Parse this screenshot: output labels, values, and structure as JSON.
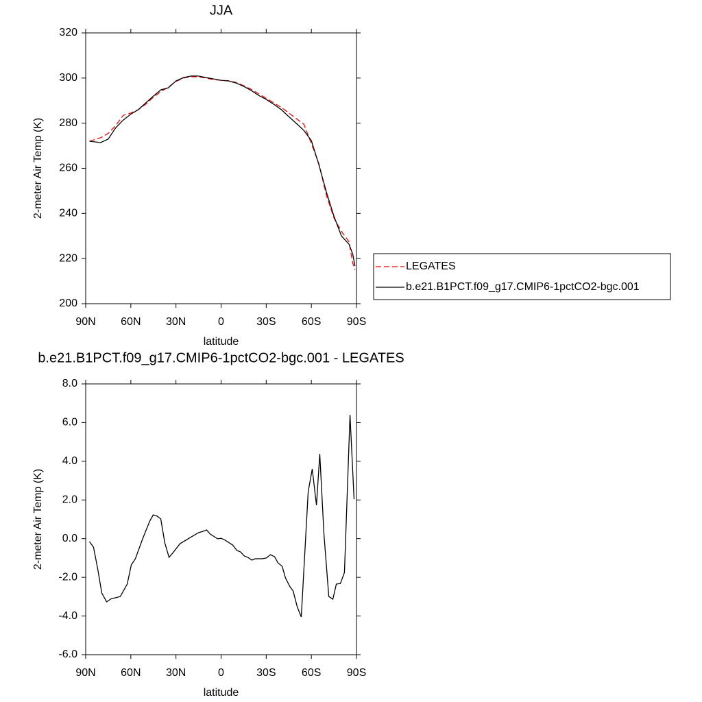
{
  "chart_data": [
    {
      "type": "line",
      "title": "JJA",
      "xlabel": "latitude",
      "ylabel": "2-meter Air Temp (K)",
      "x": [
        87.5,
        80,
        75,
        70,
        65,
        60,
        55,
        50,
        45,
        40,
        35,
        30,
        25,
        20,
        15,
        10,
        5,
        0,
        -5,
        -10,
        -15,
        -20,
        -25,
        -30,
        -35,
        -40,
        -45,
        -50,
        -55,
        -60,
        -65,
        -70,
        -75,
        -80,
        -85,
        -87.5,
        -89
      ],
      "series": [
        {
          "name": "LEGATES",
          "color": "#ff0000",
          "linestyle": "dashed",
          "values": [
            272,
            273.6,
            275.5,
            279,
            283.5,
            284.5,
            286,
            288.5,
            291.5,
            294,
            296,
            298.5,
            300,
            300.6,
            300.5,
            300,
            299.3,
            299,
            298.8,
            298,
            296.6,
            295,
            293,
            291,
            289,
            287,
            284.5,
            282,
            279.5,
            271,
            262,
            248,
            238,
            232,
            227.5,
            218,
            215
          ]
        },
        {
          "name": "b.e21.B1PCT.f09_g17.CMIP6-1pctCO2-bgc.001",
          "color": "#000000",
          "linestyle": "solid",
          "values": [
            272,
            271.4,
            273,
            278,
            281.4,
            284,
            286,
            289,
            292,
            294.8,
            295.7,
            298.7,
            300.2,
            300.9,
            300.9,
            300.2,
            299.6,
            299,
            298.7,
            297.8,
            296.3,
            294.5,
            292.3,
            290.5,
            288.4,
            286,
            282.9,
            279.9,
            276.8,
            272.3,
            261.6,
            249.5,
            238.8,
            230,
            226.4,
            222,
            216.7
          ]
        }
      ],
      "xlim": [
        90,
        -90
      ],
      "xticks": [
        {
          "value": 90,
          "label": "90N"
        },
        {
          "value": 60,
          "label": "60N"
        },
        {
          "value": 30,
          "label": "30N"
        },
        0,
        {
          "value": -30,
          "label": "30S"
        },
        {
          "value": -60,
          "label": "60S"
        },
        {
          "value": -90,
          "label": "90S"
        }
      ],
      "ylim": [
        200,
        320
      ],
      "yticks": [
        200,
        220,
        240,
        260,
        280,
        300,
        320
      ]
    },
    {
      "type": "line",
      "title": "b.e21.B1PCT.f09_g17.CMIP6-1pctCO2-bgc.001 - LEGATES",
      "xlabel": "latitude",
      "ylabel": "2-meter Air Temp (K)",
      "x": [
        87.5,
        84.8,
        82,
        79.3,
        76.1,
        73,
        70.2,
        67,
        62.4,
        59.7,
        57,
        52,
        47.4,
        45.1,
        42.4,
        40.1,
        37.4,
        34.6,
        31.9,
        27.3,
        19.6,
        15,
        11.9,
        9.6,
        7.3,
        2.3,
        0,
        -2.7,
        -7.7,
        -10.5,
        -12.8,
        -15.5,
        -17.8,
        -20.5,
        -22.8,
        -27.3,
        -30.1,
        -32.8,
        -35.5,
        -37.8,
        -40.6,
        -42.8,
        -45.6,
        -47.9,
        -50.6,
        -53.3,
        -57.9,
        -60.6,
        -63.4,
        -65.6,
        -68.4,
        -71.6,
        -74.3,
        -76.6,
        -79.3,
        -82,
        -85.7,
        -88.4
      ],
      "color": "#000000",
      "values": [
        -0.15,
        -0.44,
        -1.57,
        -2.81,
        -3.27,
        -3.1,
        -3.06,
        -2.99,
        -2.35,
        -1.36,
        -1.04,
        0.02,
        0.91,
        1.23,
        1.16,
        1.02,
        -0.22,
        -0.97,
        -0.72,
        -0.26,
        0.1,
        0.31,
        0.38,
        0.45,
        0.24,
        -0.01,
        0.02,
        -0.08,
        -0.33,
        -0.61,
        -0.68,
        -0.9,
        -0.97,
        -1.11,
        -1.04,
        -1.04,
        -1.0,
        -0.83,
        -0.93,
        -1.25,
        -1.43,
        -2.03,
        -2.46,
        -2.71,
        -3.52,
        -4.05,
        2.43,
        3.6,
        1.73,
        4.38,
        0.2,
        -2.99,
        -3.13,
        -2.35,
        -2.32,
        -1.75,
        6.4,
        2.04
      ],
      "xlim": [
        90,
        -90
      ],
      "xticks": [
        {
          "value": 90,
          "label": "90N"
        },
        {
          "value": 60,
          "label": "60N"
        },
        {
          "value": 30,
          "label": "30N"
        },
        0,
        {
          "value": -30,
          "label": "30S"
        },
        {
          "value": -60,
          "label": "60S"
        },
        {
          "value": -90,
          "label": "90S"
        }
      ],
      "ylim": [
        -6,
        8
      ],
      "yticks": [
        {
          "value": -6,
          "label": "-6.0"
        },
        {
          "value": -4,
          "label": "-4.0"
        },
        {
          "value": -2,
          "label": "-2.0"
        },
        {
          "value": 0,
          "label": "0.0"
        },
        {
          "value": 2,
          "label": "2.0"
        },
        {
          "value": 4,
          "label": "4.0"
        },
        {
          "value": 6,
          "label": "6.0"
        },
        {
          "value": 8,
          "label": "8.0"
        }
      ]
    }
  ]
}
